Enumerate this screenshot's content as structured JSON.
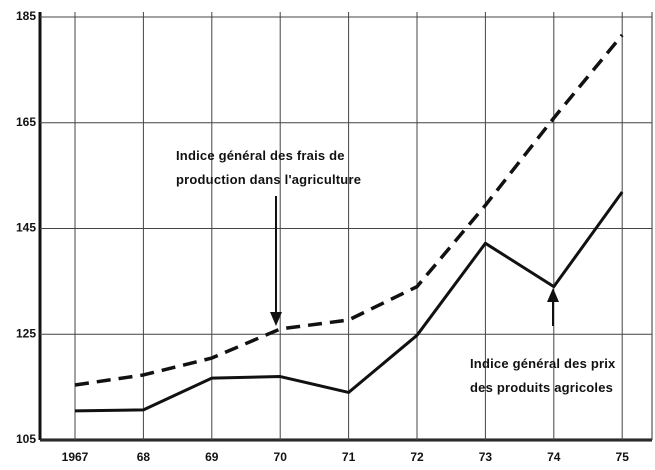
{
  "chart_data": {
    "type": "line",
    "categories": [
      "1967",
      "68",
      "69",
      "70",
      "71",
      "72",
      "73",
      "74",
      "75"
    ],
    "series": [
      {
        "name": "Indice général des frais de\nproduction dans l'agriculture",
        "color": "#111111",
        "dashed": true,
        "values": [
          115.4,
          117.3,
          120.5,
          126,
          127.7,
          134,
          149.4,
          165.9,
          181.6
        ]
      },
      {
        "name": "Indice général des prix\ndes produits agricoles",
        "color": "#111111",
        "dashed": false,
        "values": [
          110.5,
          110.7,
          116.7,
          117,
          114,
          124.8,
          142.2,
          134,
          151.9
        ]
      }
    ],
    "ylim": [
      105,
      185
    ],
    "yticks": [
      105,
      125,
      145,
      165,
      185
    ],
    "grid": true
  }
}
